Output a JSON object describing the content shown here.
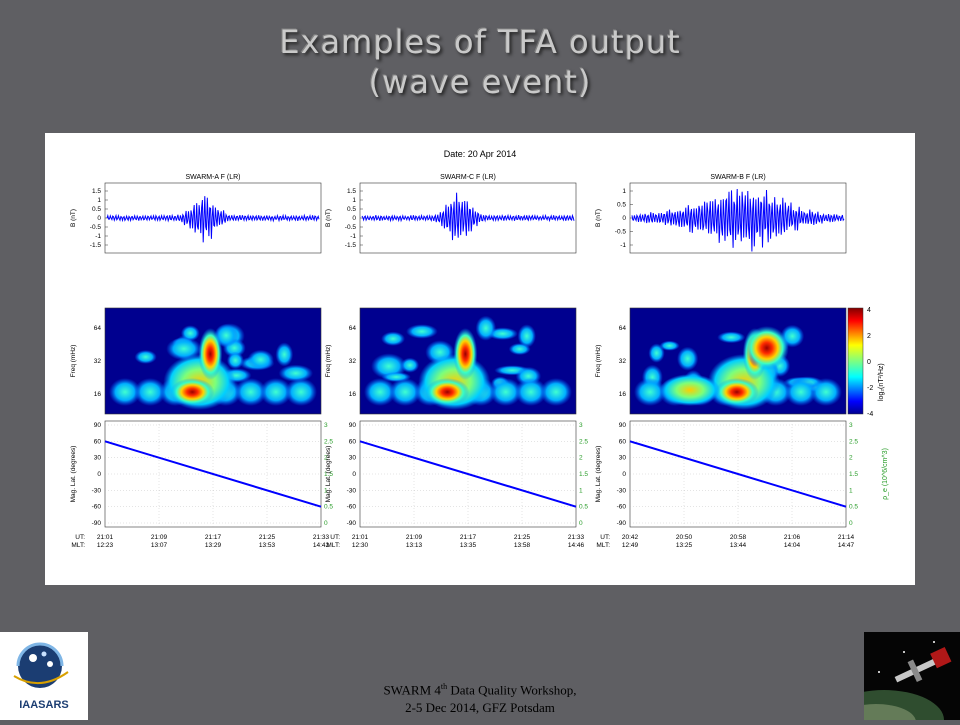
{
  "slide": {
    "title_line1": "Examples of TFA output",
    "title_line2": "(wave event)"
  },
  "figure": {
    "date": "Date: 20 Apr 2014",
    "panels": [
      {
        "name": "SWARM-A F (LR)",
        "b_ticks": [
          "1.5",
          "1",
          "0.5",
          "0",
          "-0.5",
          "-1",
          "-1.5"
        ],
        "ut": [
          "21:01",
          "21:09",
          "21:17",
          "21:25",
          "21:33"
        ],
        "mlt": [
          "12:23",
          "13:07",
          "13:29",
          "13:53",
          "14:42"
        ]
      },
      {
        "name": "SWARM-C F (LR)",
        "b_ticks": [
          "1.5",
          "1",
          "0.5",
          "0",
          "-0.5",
          "-1",
          "-1.5"
        ],
        "ut": [
          "21:01",
          "21:09",
          "21:17",
          "21:25",
          "21:33"
        ],
        "mlt": [
          "12:30",
          "13:13",
          "13:35",
          "13:58",
          "14:46"
        ]
      },
      {
        "name": "SWARM-B F (LR)",
        "b_ticks": [
          "1",
          "0.5",
          "0",
          "-0.5",
          "-1"
        ],
        "ut": [
          "20:42",
          "20:50",
          "20:58",
          "21:06",
          "21:14"
        ],
        "mlt": [
          "12:49",
          "13:25",
          "13:44",
          "14:04",
          "14:47"
        ]
      }
    ],
    "y_label_b": "B (nT)",
    "y_label_freq": "Freq (mHz)",
    "freq_ticks": [
      "64",
      "32",
      "16"
    ],
    "y_label_lat": "Mag. Lat. (degrees)",
    "lat_ticks": [
      "90",
      "60",
      "30",
      "0",
      "-30",
      "-60",
      "-90"
    ],
    "density_ticks": [
      "3",
      "2.5",
      "2",
      "1.5",
      "1",
      "0.5",
      "0"
    ],
    "density_label": "ρ_e (10^6/cm^3)",
    "colorbar_label": "log₂(nT²/Hz)",
    "colorbar_ticks": [
      "4",
      "2",
      "0",
      "-2",
      "-4"
    ],
    "ut_label": "UT:",
    "mlt_label": "MLT:"
  },
  "footer": {
    "line1_a": "SWARM 4",
    "line1_sup": "th",
    "line1_b": " Data Quality Workshop,",
    "line2": "2-5 Dec 2014, GFZ Potsdam"
  },
  "logo": {
    "text": "IAASARS"
  },
  "colors": {
    "background": "#5f5f63",
    "trace": "#0000ff",
    "density_axis": "#2a9d2a",
    "title": "#c9c9c9"
  }
}
